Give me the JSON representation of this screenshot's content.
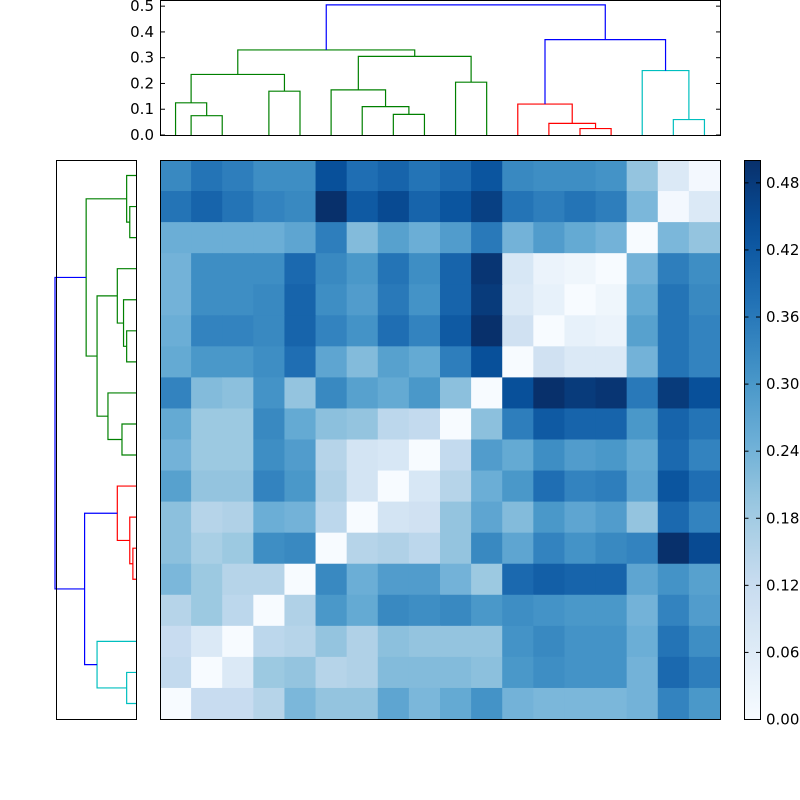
{
  "chart_data": [
    {
      "type": "dendrogram",
      "orientation": "top",
      "ylim": [
        0,
        0.52
      ],
      "y_ticks": [
        "0.0",
        "0.1",
        "0.2",
        "0.3",
        "0.4",
        "0.5"
      ],
      "leaf_count": 18,
      "colors": {
        "green": "#008000",
        "red": "#ff0000",
        "cyan": "#00bfbf",
        "blue": "#0000ff"
      },
      "links": [
        {
          "left": 0.5,
          "right": 1.5,
          "h_left": 0,
          "h_right": 0,
          "h": 0.075,
          "color": "green"
        },
        {
          "left": 0.0,
          "right": 1.0,
          "h_left": 0,
          "h_right": 0.075,
          "h": 0.125,
          "color": "green"
        },
        {
          "left": 3.0,
          "right": 4.0,
          "h_left": 0,
          "h_right": 0,
          "h": 0.17,
          "color": "green"
        },
        {
          "left": 0.5,
          "right": 3.5,
          "h_left": 0.125,
          "h_right": 0.17,
          "h": 0.235,
          "color": "green"
        },
        {
          "left": 7.0,
          "right": 8.0,
          "h_left": 0,
          "h_right": 0,
          "h": 0.08,
          "color": "green"
        },
        {
          "left": 6.0,
          "right": 7.5,
          "h_left": 0,
          "h_right": 0.08,
          "h": 0.11,
          "color": "green"
        },
        {
          "left": 5.0,
          "right": 6.75,
          "h_left": 0,
          "h_right": 0.11,
          "h": 0.175,
          "color": "green"
        },
        {
          "left": 9.0,
          "right": 10.0,
          "h_left": 0,
          "h_right": 0,
          "h": 0.205,
          "color": "green"
        },
        {
          "left": 5.875,
          "right": 9.5,
          "h_left": 0.175,
          "h_right": 0.205,
          "h": 0.305,
          "color": "green"
        },
        {
          "left": 2.0,
          "right": 7.6875,
          "h_left": 0.235,
          "h_right": 0.305,
          "h": 0.33,
          "color": "green"
        },
        {
          "left": 13.0,
          "right": 14.0,
          "h_left": 0,
          "h_right": 0,
          "h": 0.025,
          "color": "red"
        },
        {
          "left": 12.0,
          "right": 13.5,
          "h_left": 0,
          "h_right": 0.025,
          "h": 0.045,
          "color": "red"
        },
        {
          "left": 11.0,
          "right": 12.75,
          "h_left": 0,
          "h_right": 0.045,
          "h": 0.12,
          "color": "red"
        },
        {
          "left": 16.0,
          "right": 17.0,
          "h_left": 0,
          "h_right": 0,
          "h": 0.06,
          "color": "cyan"
        },
        {
          "left": 15.0,
          "right": 16.5,
          "h_left": 0,
          "h_right": 0.06,
          "h": 0.25,
          "color": "cyan"
        },
        {
          "left": 11.875,
          "right": 15.75,
          "h_left": 0.12,
          "h_right": 0.25,
          "h": 0.37,
          "color": "blue"
        },
        {
          "left": 4.84375,
          "right": 13.8125,
          "h_left": 0.33,
          "h_right": 0.37,
          "h": 0.505,
          "color": "blue"
        }
      ]
    },
    {
      "type": "dendrogram",
      "orientation": "left",
      "xlim": [
        0.52,
        0
      ],
      "leaf_count": 18,
      "colors": {
        "green": "#008000",
        "red": "#ff0000",
        "cyan": "#00bfbf",
        "blue": "#0000ff"
      },
      "links": [
        {
          "top": 16.0,
          "bottom": 17.0,
          "h_top": 0,
          "h_bottom": 0,
          "h": 0.06,
          "color": "cyan"
        },
        {
          "top": 15.0,
          "bottom": 16.5,
          "h_top": 0,
          "h_bottom": 0.06,
          "h": 0.25,
          "color": "cyan"
        },
        {
          "top": 12.0,
          "bottom": 13.0,
          "h_top": 0,
          "h_bottom": 0,
          "h": 0.02,
          "color": "red"
        },
        {
          "top": 11.0,
          "bottom": 12.5,
          "h_top": 0,
          "h_bottom": 0.02,
          "h": 0.04,
          "color": "red"
        },
        {
          "top": 10.0,
          "bottom": 11.75,
          "h_top": 0,
          "h_bottom": 0.04,
          "h": 0.12,
          "color": "red"
        },
        {
          "top": 10.875,
          "bottom": 15.75,
          "h_top": 0.12,
          "h_bottom": 0.25,
          "h": 0.33,
          "color": "blue"
        },
        {
          "top": 8.0,
          "bottom": 9.0,
          "h_top": 0,
          "h_bottom": 0,
          "h": 0.09,
          "color": "green"
        },
        {
          "top": 7.0,
          "bottom": 8.5,
          "h_top": 0,
          "h_bottom": 0.09,
          "h": 0.18,
          "color": "green"
        },
        {
          "top": 5.0,
          "bottom": 6.0,
          "h_top": 0,
          "h_bottom": 0,
          "h": 0.06,
          "color": "green"
        },
        {
          "top": 4.0,
          "bottom": 5.5,
          "h_top": 0,
          "h_bottom": 0.06,
          "h": 0.08,
          "color": "green"
        },
        {
          "top": 3.0,
          "bottom": 4.75,
          "h_top": 0,
          "h_bottom": 0.08,
          "h": 0.12,
          "color": "green"
        },
        {
          "top": 3.875,
          "bottom": 7.75,
          "h_top": 0.12,
          "h_bottom": 0.18,
          "h": 0.25,
          "color": "green"
        },
        {
          "top": 1.0,
          "bottom": 2.0,
          "h_top": 0,
          "h_bottom": 0,
          "h": 0.04,
          "color": "green"
        },
        {
          "top": 0.0,
          "bottom": 1.5,
          "h_top": 0,
          "h_bottom": 0.04,
          "h": 0.06,
          "color": "green"
        },
        {
          "top": 0.75,
          "bottom": 5.8125,
          "h_top": 0.06,
          "h_bottom": 0.25,
          "h": 0.32,
          "color": "green"
        },
        {
          "top": 3.28125,
          "bottom": 13.3125,
          "h_top": 0.32,
          "h_bottom": 0.33,
          "h": 0.52,
          "color": "blue"
        }
      ]
    },
    {
      "type": "heatmap",
      "rows": 18,
      "cols": 18,
      "vmin": 0,
      "vmax": 0.5,
      "colormap": "Blues",
      "values": [
        [
          0.33,
          0.37,
          0.35,
          0.32,
          0.32,
          0.44,
          0.38,
          0.4,
          0.37,
          0.39,
          0.43,
          0.33,
          0.32,
          0.32,
          0.31,
          0.2,
          0.07,
          0.01
        ],
        [
          0.37,
          0.4,
          0.37,
          0.34,
          0.33,
          0.5,
          0.42,
          0.45,
          0.4,
          0.43,
          0.47,
          0.37,
          0.35,
          0.37,
          0.35,
          0.23,
          0.01,
          0.07
        ],
        [
          0.25,
          0.25,
          0.25,
          0.25,
          0.27,
          0.35,
          0.22,
          0.28,
          0.25,
          0.29,
          0.36,
          0.24,
          0.29,
          0.26,
          0.24,
          0.0,
          0.23,
          0.2
        ],
        [
          0.24,
          0.32,
          0.32,
          0.32,
          0.39,
          0.33,
          0.3,
          0.37,
          0.32,
          0.4,
          0.49,
          0.08,
          0.03,
          0.02,
          0.0,
          0.24,
          0.35,
          0.32
        ],
        [
          0.24,
          0.32,
          0.32,
          0.33,
          0.4,
          0.32,
          0.29,
          0.36,
          0.31,
          0.4,
          0.48,
          0.07,
          0.04,
          0.0,
          0.02,
          0.26,
          0.37,
          0.33
        ],
        [
          0.25,
          0.34,
          0.34,
          0.33,
          0.4,
          0.34,
          0.31,
          0.38,
          0.34,
          0.42,
          0.5,
          0.1,
          0.0,
          0.04,
          0.03,
          0.28,
          0.37,
          0.34
        ],
        [
          0.26,
          0.3,
          0.3,
          0.32,
          0.38,
          0.27,
          0.22,
          0.28,
          0.26,
          0.35,
          0.44,
          0.0,
          0.1,
          0.07,
          0.07,
          0.24,
          0.37,
          0.34
        ],
        [
          0.34,
          0.22,
          0.21,
          0.31,
          0.2,
          0.33,
          0.28,
          0.26,
          0.3,
          0.21,
          0.0,
          0.44,
          0.5,
          0.48,
          0.49,
          0.36,
          0.48,
          0.44
        ],
        [
          0.26,
          0.19,
          0.19,
          0.33,
          0.26,
          0.21,
          0.2,
          0.14,
          0.13,
          0.0,
          0.21,
          0.35,
          0.42,
          0.4,
          0.4,
          0.3,
          0.4,
          0.37
        ],
        [
          0.24,
          0.19,
          0.19,
          0.32,
          0.29,
          0.15,
          0.09,
          0.08,
          0.0,
          0.13,
          0.29,
          0.26,
          0.32,
          0.29,
          0.3,
          0.26,
          0.39,
          0.34
        ],
        [
          0.28,
          0.2,
          0.2,
          0.34,
          0.3,
          0.16,
          0.09,
          0.0,
          0.08,
          0.15,
          0.25,
          0.3,
          0.38,
          0.34,
          0.35,
          0.27,
          0.43,
          0.38
        ],
        [
          0.21,
          0.15,
          0.16,
          0.25,
          0.24,
          0.14,
          0.0,
          0.09,
          0.1,
          0.2,
          0.27,
          0.22,
          0.3,
          0.27,
          0.29,
          0.2,
          0.39,
          0.34
        ],
        [
          0.21,
          0.17,
          0.19,
          0.32,
          0.33,
          0.0,
          0.15,
          0.16,
          0.14,
          0.2,
          0.33,
          0.27,
          0.34,
          0.31,
          0.33,
          0.34,
          0.5,
          0.45
        ],
        [
          0.23,
          0.19,
          0.15,
          0.15,
          0.0,
          0.33,
          0.25,
          0.29,
          0.29,
          0.24,
          0.19,
          0.39,
          0.41,
          0.4,
          0.4,
          0.27,
          0.31,
          0.28
        ],
        [
          0.15,
          0.19,
          0.14,
          0.0,
          0.16,
          0.3,
          0.26,
          0.33,
          0.32,
          0.33,
          0.3,
          0.32,
          0.31,
          0.3,
          0.3,
          0.24,
          0.34,
          0.29
        ],
        [
          0.12,
          0.07,
          0.0,
          0.14,
          0.15,
          0.2,
          0.16,
          0.21,
          0.2,
          0.2,
          0.2,
          0.31,
          0.33,
          0.31,
          0.31,
          0.25,
          0.37,
          0.32
        ],
        [
          0.13,
          0.0,
          0.07,
          0.19,
          0.2,
          0.15,
          0.16,
          0.22,
          0.22,
          0.22,
          0.21,
          0.3,
          0.32,
          0.31,
          0.31,
          0.24,
          0.39,
          0.35
        ],
        [
          0.0,
          0.12,
          0.12,
          0.15,
          0.23,
          0.2,
          0.2,
          0.27,
          0.23,
          0.26,
          0.31,
          0.24,
          0.23,
          0.23,
          0.23,
          0.24,
          0.34,
          0.3
        ]
      ]
    },
    {
      "type": "colorbar",
      "vmin": 0,
      "vmax": 0.5,
      "ticks": [
        {
          "value": 0.0,
          "label": "0.00"
        },
        {
          "value": 0.06,
          "label": "0.06"
        },
        {
          "value": 0.12,
          "label": "0.12"
        },
        {
          "value": 0.18,
          "label": "0.18"
        },
        {
          "value": 0.24,
          "label": "0.24"
        },
        {
          "value": 0.3,
          "label": "0.30"
        },
        {
          "value": 0.36,
          "label": "0.36"
        },
        {
          "value": 0.42,
          "label": "0.42"
        },
        {
          "value": 0.48,
          "label": "0.48"
        }
      ]
    }
  ]
}
